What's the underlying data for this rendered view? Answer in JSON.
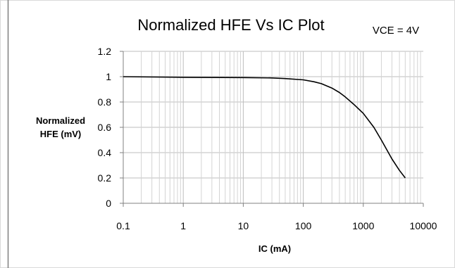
{
  "chart_data": {
    "type": "line",
    "title": "Normalized HFE Vs IC Plot",
    "annotation": "VCE =  4V",
    "xlabel": "IC (mA)",
    "ylabel_lines": [
      "Normalized",
      "HFE (mV)"
    ],
    "x_scale": "log",
    "xlim": [
      0.1,
      10000
    ],
    "ylim": [
      0,
      1.2
    ],
    "x_ticks": [
      "0.1",
      "1",
      "10",
      "100",
      "1000",
      "10000"
    ],
    "y_ticks": [
      "0",
      "0.2",
      "0.4",
      "0.6",
      "0.8",
      "1",
      "1.2"
    ],
    "grid": true,
    "legend": "none",
    "series": [
      {
        "color": "#000000",
        "x": [
          0.1,
          1,
          10,
          30,
          50,
          100,
          150,
          200,
          300,
          400,
          500,
          700,
          1000,
          1500,
          2000,
          3000,
          4000,
          5000
        ],
        "y": [
          1.0,
          0.995,
          0.993,
          0.99,
          0.985,
          0.975,
          0.96,
          0.945,
          0.91,
          0.875,
          0.84,
          0.78,
          0.71,
          0.6,
          0.5,
          0.35,
          0.26,
          0.2
        ]
      }
    ]
  }
}
